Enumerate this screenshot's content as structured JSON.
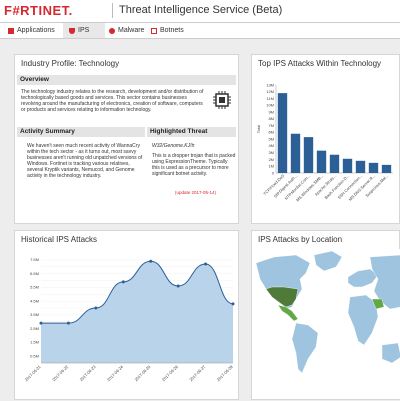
{
  "header": {
    "logo": "F#RTINET.",
    "title": "Threat Intelligence Service (Beta)"
  },
  "tabs": [
    {
      "label": "Applications"
    },
    {
      "label": "IPS"
    },
    {
      "label": "Malware"
    },
    {
      "label": "Botnets"
    }
  ],
  "profile": {
    "title": "Industry Profile: Technology",
    "overview_heading": "Overview",
    "overview_text": "The technology industry relates to the research, development and/or distribution of technologically based goods and services. This sector contains businesses revolving around the manufacturing of electronics, creation of software, computers or products and services relating to information technology.",
    "activity_heading": "Activity Summary",
    "activity_text": "We haven't seen much recent activity of WannaCry within the tech sector - as it turns out, most savvy businesses aren't running old unpatched versions of Windows. Fortinet is tracking various relatives, several Kryptik variants, Nemucod, and Genome activity in the technology industry.",
    "threat_heading": "Highlighted Threat",
    "threat_name": "W32/Genome.KJ!tr",
    "threat_text": "This is a dropper trojan that is packed using ExpressionTheme. Typically this is used as a precursor to more significant botnet activity.",
    "update": "(update 2017-05-14)"
  },
  "top_attacks": {
    "title": "Top IPS Attacks Within Technology",
    "chart_data": {
      "type": "bar",
      "ylabel": "Total",
      "ylim": [
        0,
        13000000
      ],
      "yticks": [
        "0",
        "1M",
        "2M",
        "3M",
        "4M",
        "5M",
        "6M",
        "7M",
        "8M",
        "9M",
        "10M",
        "11M",
        "12M",
        "13M"
      ],
      "categories": [
        "TCP.Flood.DoS",
        "SIP.Digest.Auth...",
        "NTP.Monlist.Com...",
        "MS.Windows.SMB...",
        "Apache.Struts...",
        "Bash.Function.D...",
        "SSH.Connection...",
        "MS.DNS.Server.R...",
        "Suspicious.Mal..."
      ],
      "values": [
        11800000,
        5800000,
        5300000,
        3300000,
        2700000,
        2100000,
        1800000,
        1500000,
        1200000
      ],
      "color": "#2c5f96"
    }
  },
  "historical": {
    "title": "Historical IPS Attacks",
    "chart_data": {
      "type": "area",
      "ylim": [
        0,
        8000000
      ],
      "yticks": [
        "0M",
        "0.5M",
        "1M",
        "1.5M",
        "2M",
        "2.5M",
        "3M",
        "3.5M",
        "4M",
        "4.5M",
        "5M",
        "5.5M",
        "6M",
        "6.5M",
        "7M",
        "7.5M"
      ],
      "x": [
        "2017-06-21",
        "2017-06-22",
        "2017-06-23",
        "2017-06-24",
        "2017-06-25",
        "2017-06-26",
        "2017-06-27",
        "2017-06-28"
      ],
      "values": [
        2900000,
        2900000,
        4000000,
        5900000,
        7400000,
        5600000,
        7200000,
        4300000
      ],
      "color": "#2c5f96",
      "fill": "#b8d3ea"
    }
  },
  "location": {
    "title": "IPS Attacks by Location",
    "ocean": "#ffffff",
    "land": "#9ec4df",
    "high": "#4f7a3a",
    "highest": "#63a846"
  }
}
